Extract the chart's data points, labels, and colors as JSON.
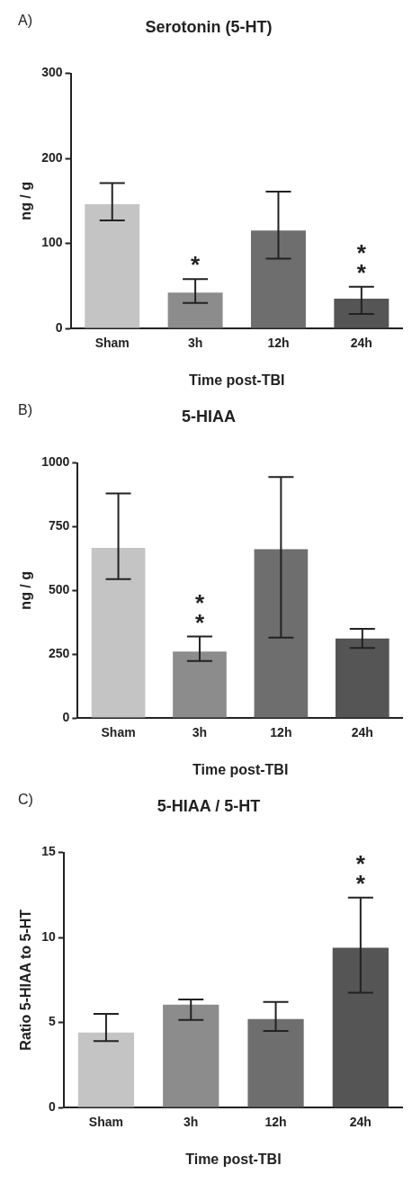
{
  "chart_data": [
    {
      "type": "bar",
      "title": "Serotonin (5-HT)",
      "xlabel": "Time post-TBI",
      "ylabel": "ng / g",
      "categories": [
        "Sham",
        "3h",
        "12h",
        "24h"
      ],
      "values": [
        146,
        42,
        115,
        35
      ],
      "colors": [
        "#c4c4c4",
        "#8c8c8c",
        "#6e6e6e",
        "#555555"
      ],
      "errors": [
        [
          127,
          171
        ],
        [
          30,
          58
        ],
        [
          82,
          161
        ],
        [
          17,
          49
        ]
      ],
      "ylim": [
        0,
        300
      ],
      "yticks": [
        0,
        100,
        200,
        300
      ],
      "grid": false,
      "legend": false,
      "annotations": [
        "A)",
        {
          "text": "*",
          "x": "3h",
          "y": 58
        },
        {
          "text": "*",
          "x": "24h",
          "y": 49
        },
        {
          "text": "*",
          "x": "24h",
          "y": 49
        }
      ]
    },
    {
      "type": "bar",
      "title": "5-HIAA",
      "xlabel": "Time post-TBI",
      "ylabel": "ng / g",
      "categories": [
        "Sham",
        "3h",
        "12h",
        "24h"
      ],
      "values": [
        667,
        260,
        662,
        311
      ],
      "colors": [
        "#c4c4c4",
        "#8c8c8c",
        "#6e6e6e",
        "#555555"
      ],
      "errors": [
        [
          544,
          880
        ],
        [
          223,
          319
        ],
        [
          315,
          945
        ],
        [
          274,
          349
        ]
      ],
      "ylim": [
        0,
        1000
      ],
      "yticks": [
        0,
        250,
        500,
        750,
        1000
      ],
      "grid": false,
      "legend": false,
      "annotations": [
        "B)",
        {
          "text": "*",
          "x": "3h",
          "y": 319
        },
        {
          "text": "*",
          "x": "3h",
          "y": 319
        }
      ]
    },
    {
      "type": "bar",
      "title": "5-HIAA / 5-HT",
      "xlabel": "Time post-TBI",
      "ylabel": "Ratio 5-HIAA to 5-HT",
      "categories": [
        "Sham",
        "3h",
        "12h",
        "24h"
      ],
      "values": [
        4.4,
        6.05,
        5.2,
        9.4
      ],
      "colors": [
        "#c4c4c4",
        "#8c8c8c",
        "#6e6e6e",
        "#555555"
      ],
      "errors": [
        [
          3.9,
          5.5
        ],
        [
          5.15,
          6.35
        ],
        [
          4.5,
          6.2
        ],
        [
          6.75,
          12.35
        ]
      ],
      "ylim": [
        0,
        15
      ],
      "yticks": [
        0,
        5,
        10,
        15
      ],
      "grid": false,
      "legend": false,
      "annotations": [
        "C)",
        {
          "text": "*",
          "x": "24h",
          "y": 12.35
        },
        {
          "text": "*",
          "x": "24h",
          "y": 12.35
        }
      ]
    }
  ]
}
